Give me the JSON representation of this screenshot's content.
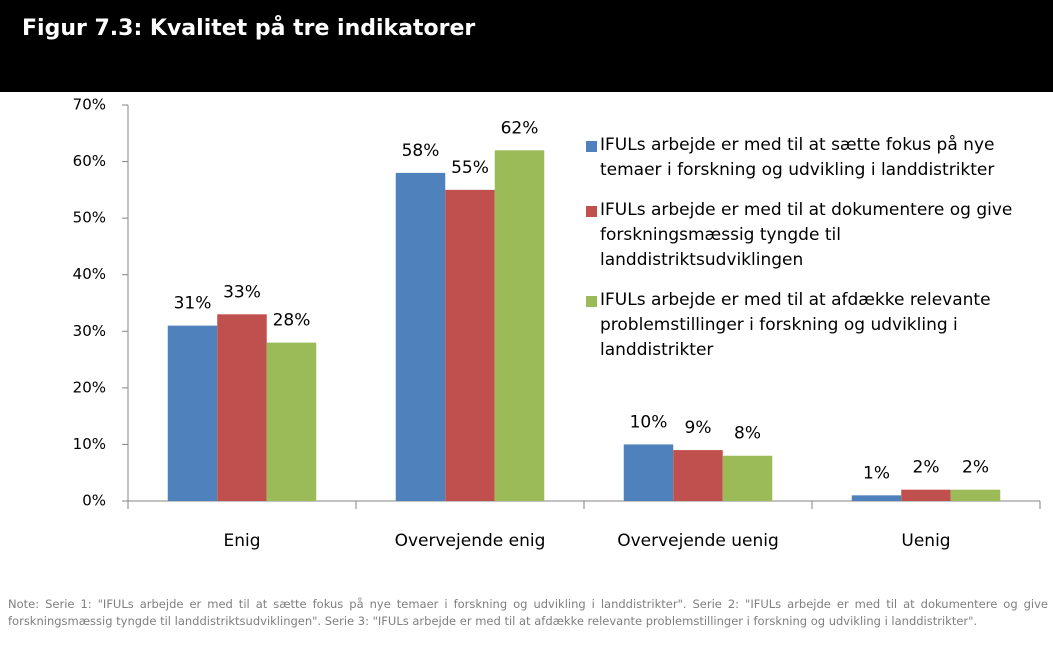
{
  "chart_data": {
    "type": "bar",
    "title": "Figur 7.3: Kvalitet på tre indikatorer",
    "categories": [
      "Enig",
      "Overvejende enig",
      "Overvejende uenig",
      "Uenig"
    ],
    "series": [
      {
        "name": "IFULs arbejde er med til at sætte fokus på nye temaer i forskning og udvikling i landdistrikter",
        "color": "#4f81bd",
        "values": [
          31,
          58,
          10,
          1
        ],
        "value_labels": [
          "31%",
          "58%",
          "10%",
          "1%"
        ]
      },
      {
        "name": "IFULs arbejde er med til at dokumentere og give forskningsmæssig tyngde til landdistriktsudviklingen",
        "color": "#c0504d",
        "values": [
          33,
          55,
          9,
          2
        ],
        "value_labels": [
          "33%",
          "55%",
          "9%",
          "2%"
        ]
      },
      {
        "name": "IFULs arbejde er med til at afdække relevante problemstillinger i forskning og udvikling i landdistrikter",
        "color": "#9bbb59",
        "values": [
          28,
          62,
          8,
          2
        ],
        "value_labels": [
          "28%",
          "62%",
          "8%",
          "2%"
        ]
      }
    ],
    "ylim": [
      0,
      70
    ],
    "yticks": [
      {
        "value": 0,
        "label": "0%"
      },
      {
        "value": 10,
        "label": "10%"
      },
      {
        "value": 20,
        "label": "20%"
      },
      {
        "value": 30,
        "label": "30%"
      },
      {
        "value": 40,
        "label": "40%"
      },
      {
        "value": 50,
        "label": "50%"
      },
      {
        "value": 60,
        "label": "60%"
      },
      {
        "value": 70,
        "label": "70%"
      }
    ],
    "grid": false,
    "legend": "right",
    "note": "Note: Serie 1: \"IFULs arbejde er med til at sætte fokus på nye temaer i forskning og udvikling i landdistrikter\". Serie 2: \"IFULs arbejde er med til at dokumentere og give forskningsmæssig tyngde til landdistriktsudviklingen\". Serie 3: \"IFULs arbejde er med til at afdække relevante problemstillinger i forskning og udvikling i landdistrikter\"."
  }
}
